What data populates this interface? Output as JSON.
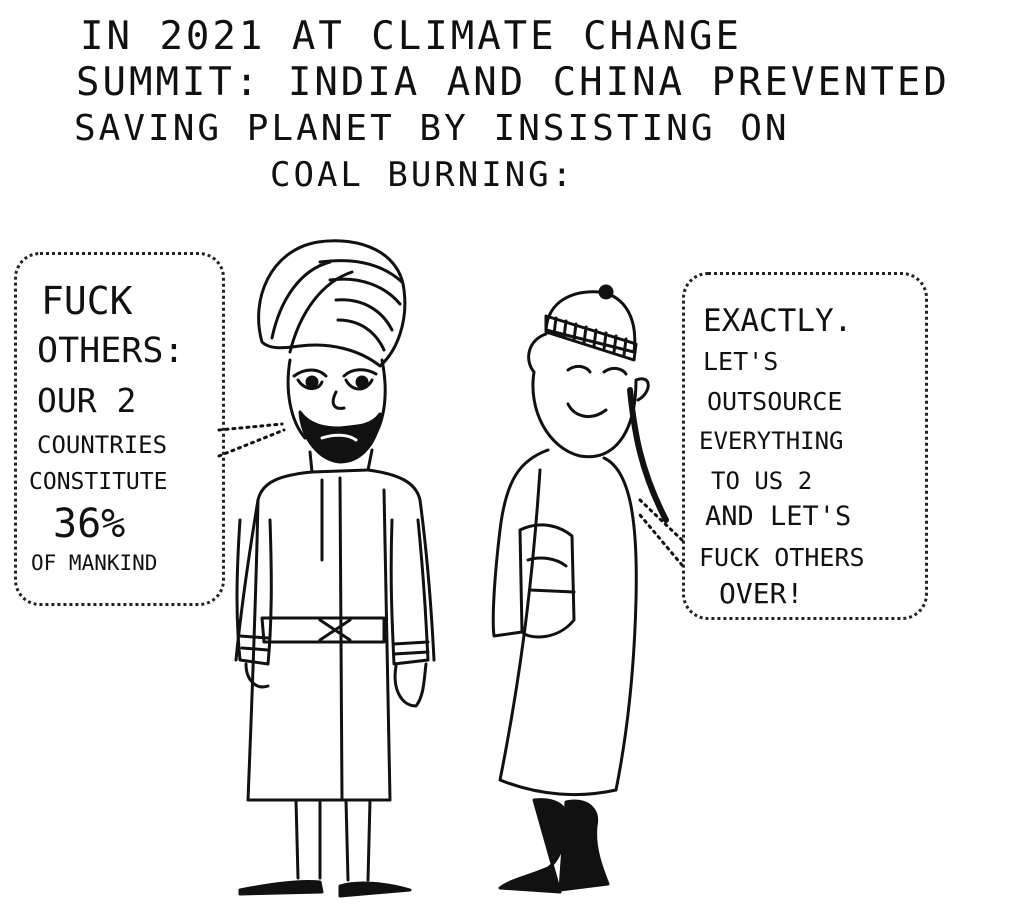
{
  "title_lines": [
    "In 2021 at climate change",
    "summit: India and China prevented",
    "saving planet by insisting on",
    "coal burning:"
  ],
  "left_speech": [
    "Fuck",
    "others:",
    "our 2",
    "countries",
    "constitute",
    "36%",
    "of mankind"
  ],
  "right_speech": [
    "Exactly.",
    "Let's",
    "outsource",
    "everything",
    "to us 2",
    "and let's",
    "fuck others",
    "over!"
  ],
  "colors": {
    "ink": "#111111",
    "paper": "#ffffff"
  },
  "characters": [
    "turbaned-man",
    "man-with-cap-and-queue"
  ]
}
